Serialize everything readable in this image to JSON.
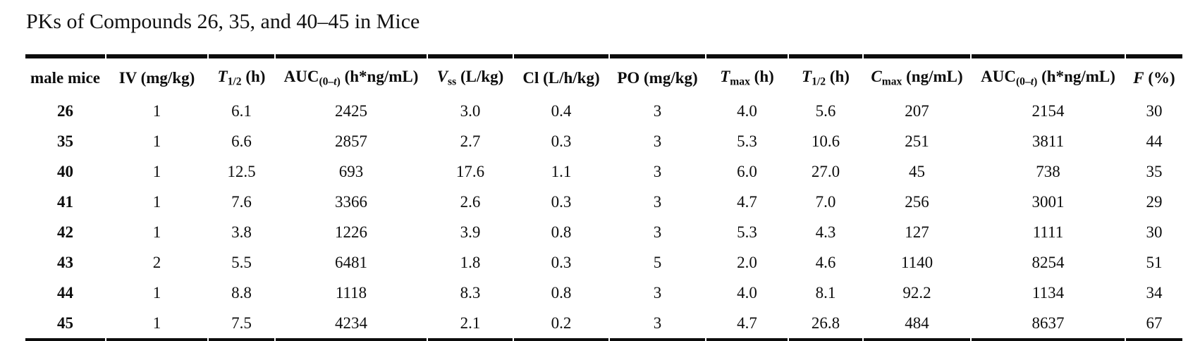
{
  "title": "PKs of Compounds 26, 35, and 40–45 in Mice",
  "colors": {
    "text": "#0d0d0d",
    "rule": "#0c0c0c",
    "background": "#ffffff"
  },
  "table": {
    "columns": [
      {
        "name": "male-mice",
        "segments": [
          [
            "male mice",
            ""
          ]
        ]
      },
      {
        "name": "iv-dose",
        "segments": [
          [
            "IV (mg/kg)",
            ""
          ]
        ]
      },
      {
        "name": "iv-t-half",
        "segments": [
          [
            "T",
            "i"
          ],
          [
            "1/2",
            "sub"
          ],
          [
            " (h)",
            ""
          ]
        ]
      },
      {
        "name": "iv-auc",
        "segments": [
          [
            "AUC",
            ""
          ],
          [
            "(0–",
            "sub"
          ],
          [
            "t",
            "isub"
          ],
          [
            ")",
            "sub"
          ],
          [
            " (h*ng/mL)",
            ""
          ]
        ]
      },
      {
        "name": "vss",
        "segments": [
          [
            "V",
            "i"
          ],
          [
            "ss",
            "sub"
          ],
          [
            " (L/kg)",
            ""
          ]
        ]
      },
      {
        "name": "cl",
        "segments": [
          [
            "Cl (L/h/kg)",
            ""
          ]
        ]
      },
      {
        "name": "po-dose",
        "segments": [
          [
            "PO (mg/kg)",
            ""
          ]
        ]
      },
      {
        "name": "t-max",
        "segments": [
          [
            "T",
            "i"
          ],
          [
            "max",
            "sub"
          ],
          [
            " (h)",
            ""
          ]
        ]
      },
      {
        "name": "po-t-half",
        "segments": [
          [
            "T",
            "i"
          ],
          [
            "1/2",
            "sub"
          ],
          [
            " (h)",
            ""
          ]
        ]
      },
      {
        "name": "c-max",
        "segments": [
          [
            "C",
            "i"
          ],
          [
            "max",
            "sub"
          ],
          [
            " (ng/mL)",
            ""
          ]
        ]
      },
      {
        "name": "po-auc",
        "segments": [
          [
            "AUC",
            ""
          ],
          [
            "(0–",
            "sub"
          ],
          [
            "t",
            "isub"
          ],
          [
            ")",
            "sub"
          ],
          [
            " (h*ng/mL)",
            ""
          ]
        ]
      },
      {
        "name": "f-percent",
        "segments": [
          [
            "F",
            "i"
          ],
          [
            " (%)",
            ""
          ]
        ]
      }
    ],
    "rows": [
      [
        "26",
        "1",
        "6.1",
        "2425",
        "3.0",
        "0.4",
        "3",
        "4.0",
        "5.6",
        "207",
        "2154",
        "30"
      ],
      [
        "35",
        "1",
        "6.6",
        "2857",
        "2.7",
        "0.3",
        "3",
        "5.3",
        "10.6",
        "251",
        "3811",
        "44"
      ],
      [
        "40",
        "1",
        "12.5",
        "693",
        "17.6",
        "1.1",
        "3",
        "6.0",
        "27.0",
        "45",
        "738",
        "35"
      ],
      [
        "41",
        "1",
        "7.6",
        "3366",
        "2.6",
        "0.3",
        "3",
        "4.7",
        "7.0",
        "256",
        "3001",
        "29"
      ],
      [
        "42",
        "1",
        "3.8",
        "1226",
        "3.9",
        "0.8",
        "3",
        "5.3",
        "4.3",
        "127",
        "1111",
        "30"
      ],
      [
        "43",
        "2",
        "5.5",
        "6481",
        "1.8",
        "0.3",
        "5",
        "2.0",
        "4.6",
        "1140",
        "8254",
        "51"
      ],
      [
        "44",
        "1",
        "8.8",
        "1118",
        "8.3",
        "0.8",
        "3",
        "4.0",
        "8.1",
        "92.2",
        "1134",
        "34"
      ],
      [
        "45",
        "1",
        "7.5",
        "4234",
        "2.1",
        "0.2",
        "3",
        "4.7",
        "26.8",
        "484",
        "8637",
        "67"
      ]
    ]
  }
}
